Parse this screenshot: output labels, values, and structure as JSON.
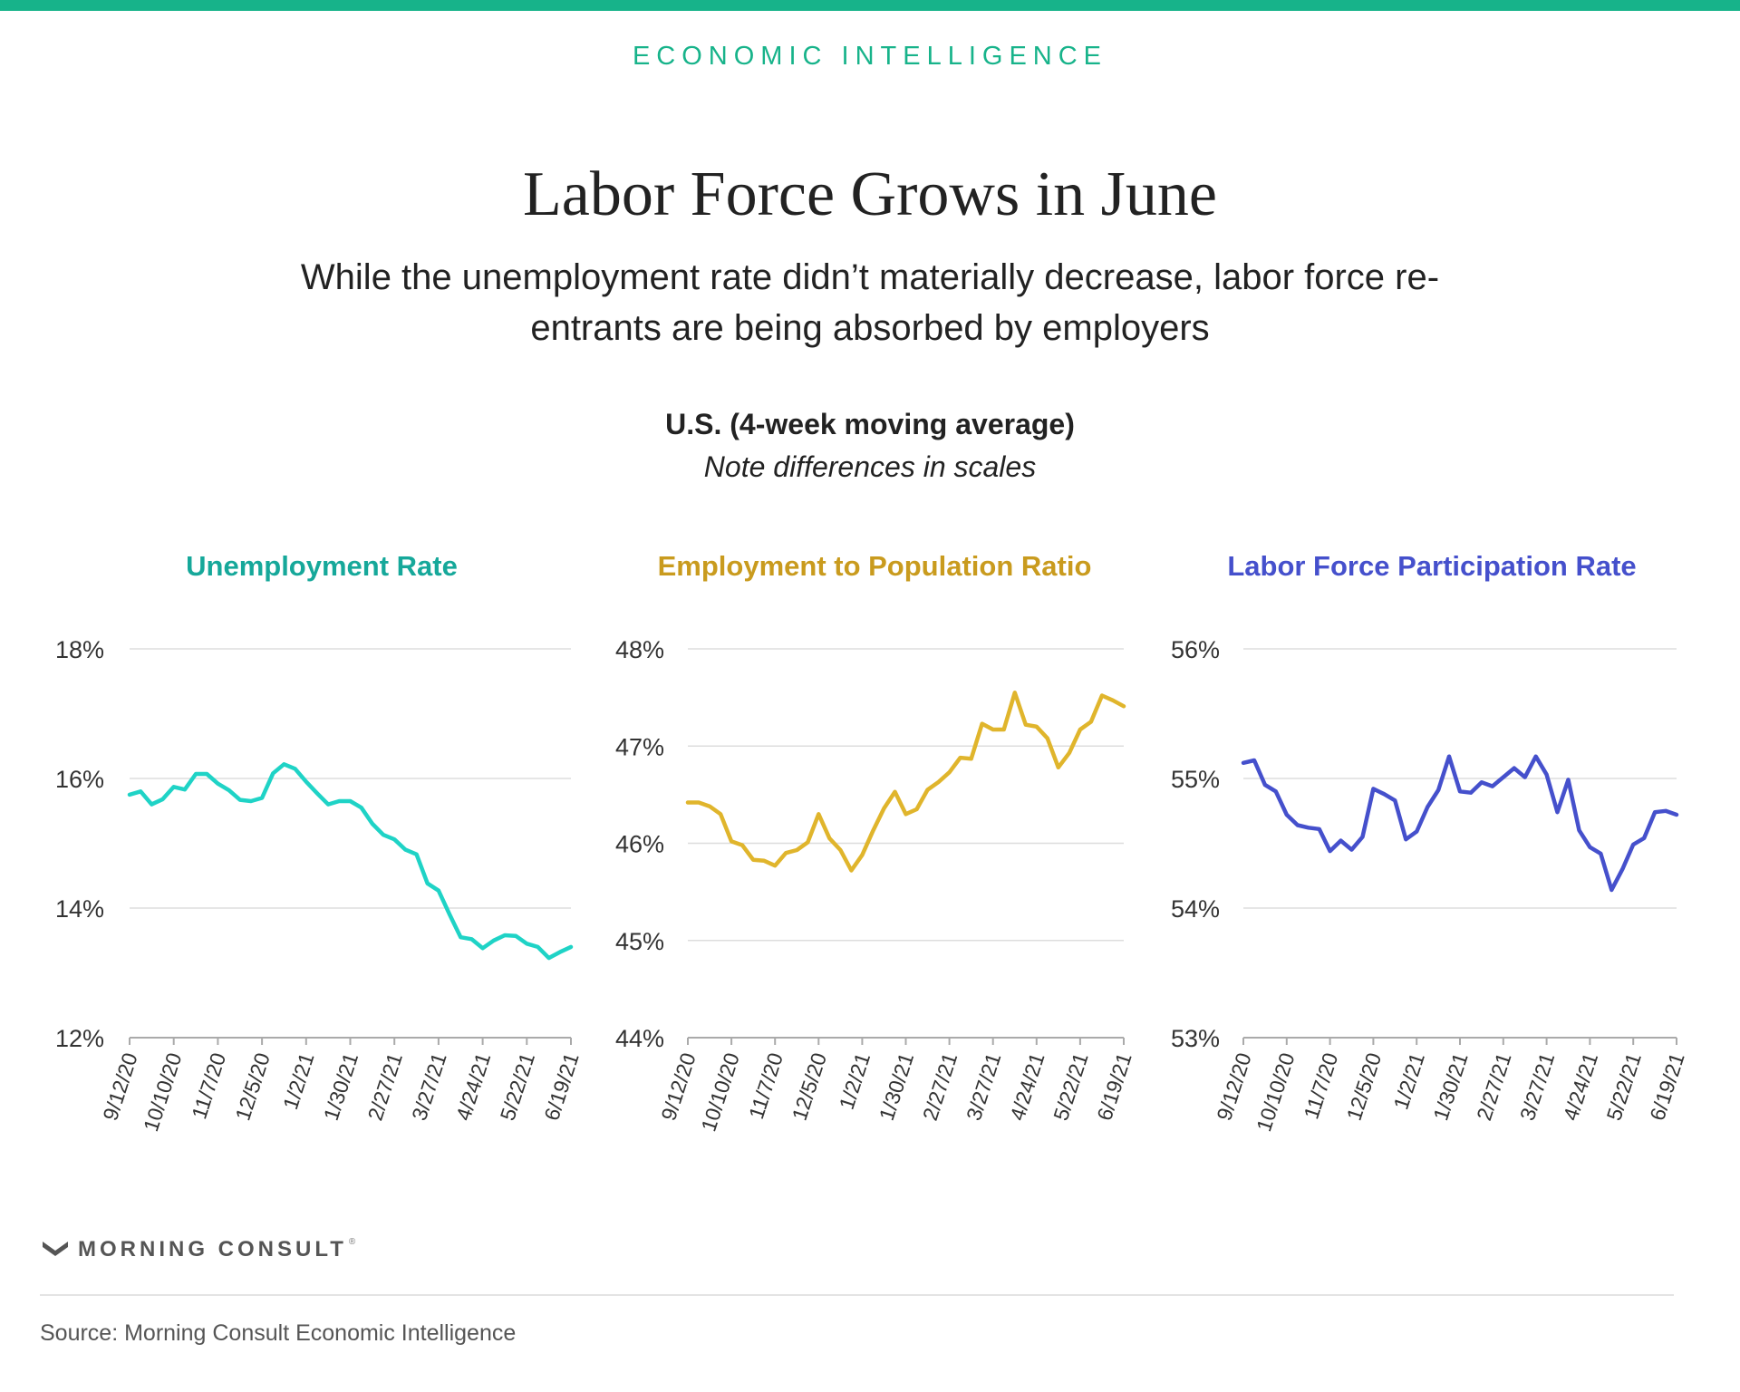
{
  "header": {
    "kicker": "ECONOMIC INTELLIGENCE",
    "title": "Labor Force Grows in June",
    "subtitle": "While the unemployment rate didn’t materially decrease, labor force re-entrants are being absorbed by employers",
    "chart_heading": "U.S. (4-week moving average)",
    "chart_note": "Note differences in scales"
  },
  "colors": {
    "brand_green": "#17b38a",
    "unemployment": "#1fd3c6",
    "unemployment_title": "#16a89a",
    "employment": "#e0b52c",
    "employment_title": "#c99b1e",
    "participation": "#4550cc"
  },
  "footer": {
    "logo_text": "MORNING CONSULT",
    "logo_tm": "®",
    "source": "Source: Morning Consult Economic Intelligence"
  },
  "chart_data": [
    {
      "type": "line",
      "title": "Unemployment Rate",
      "ylim": [
        12,
        18
      ],
      "yticks": [
        12,
        14,
        16,
        18
      ],
      "ytick_labels": [
        "12%",
        "14%",
        "16%",
        "18%"
      ],
      "xtick_labels": [
        "9/12/20",
        "10/10/20",
        "11/7/20",
        "12/5/20",
        "1/2/21",
        "1/30/21",
        "2/27/21",
        "3/27/21",
        "4/24/21",
        "5/22/21",
        "6/19/21"
      ],
      "grid": true,
      "x": [
        "9/12/20",
        "9/19/20",
        "9/26/20",
        "10/3/20",
        "10/10/20",
        "10/17/20",
        "10/24/20",
        "10/31/20",
        "11/7/20",
        "11/14/20",
        "11/21/20",
        "11/28/20",
        "12/5/20",
        "12/12/20",
        "12/19/20",
        "12/26/20",
        "1/2/21",
        "1/9/21",
        "1/16/21",
        "1/23/21",
        "1/30/21",
        "2/6/21",
        "2/13/21",
        "2/20/21",
        "2/27/21",
        "3/6/21",
        "3/13/21",
        "3/20/21",
        "3/27/21",
        "4/3/21",
        "4/10/21",
        "4/17/21",
        "4/24/21",
        "5/1/21",
        "5/8/21",
        "5/15/21",
        "5/22/21",
        "5/29/21",
        "6/5/21",
        "6/12/21",
        "6/19/21"
      ],
      "values": [
        15.75,
        15.8,
        15.6,
        15.68,
        15.87,
        15.83,
        16.07,
        16.07,
        15.92,
        15.82,
        15.67,
        15.65,
        15.7,
        16.08,
        16.22,
        16.15,
        15.95,
        15.77,
        15.6,
        15.65,
        15.65,
        15.55,
        15.3,
        15.13,
        15.06,
        14.9,
        14.83,
        14.38,
        14.27,
        13.9,
        13.55,
        13.52,
        13.38,
        13.5,
        13.58,
        13.57,
        13.45,
        13.4,
        13.23,
        13.32,
        13.4
      ],
      "series": [
        {
          "name": "Unemployment Rate",
          "values": "values"
        }
      ]
    },
    {
      "type": "line",
      "title": "Employment to Population Ratio",
      "ylim": [
        44,
        48
      ],
      "yticks": [
        44,
        45,
        46,
        47,
        48
      ],
      "ytick_labels": [
        "44%",
        "45%",
        "46%",
        "47%",
        "48%"
      ],
      "xtick_labels": [
        "9/12/20",
        "10/10/20",
        "11/7/20",
        "12/5/20",
        "1/2/21",
        "1/30/21",
        "2/27/21",
        "3/27/21",
        "4/24/21",
        "5/22/21",
        "6/19/21"
      ],
      "grid": true,
      "x": [
        "9/12/20",
        "9/19/20",
        "9/26/20",
        "10/3/20",
        "10/10/20",
        "10/17/20",
        "10/24/20",
        "10/31/20",
        "11/7/20",
        "11/14/20",
        "11/21/20",
        "11/28/20",
        "12/5/20",
        "12/12/20",
        "12/19/20",
        "12/26/20",
        "1/2/21",
        "1/9/21",
        "1/16/21",
        "1/23/21",
        "1/30/21",
        "2/6/21",
        "2/13/21",
        "2/20/21",
        "2/27/21",
        "3/6/21",
        "3/13/21",
        "3/20/21",
        "3/27/21",
        "4/3/21",
        "4/10/21",
        "4/17/21",
        "4/24/21",
        "5/1/21",
        "5/8/21",
        "5/15/21",
        "5/22/21",
        "5/29/21",
        "6/5/21",
        "6/12/21",
        "6/19/21"
      ],
      "values": [
        46.42,
        46.42,
        46.38,
        46.3,
        46.02,
        45.98,
        45.83,
        45.82,
        45.77,
        45.9,
        45.93,
        46.01,
        46.3,
        46.05,
        45.93,
        45.72,
        45.88,
        46.13,
        46.36,
        46.53,
        46.3,
        46.35,
        46.55,
        46.63,
        46.73,
        46.88,
        46.87,
        47.23,
        47.17,
        47.17,
        47.55,
        47.22,
        47.2,
        47.08,
        46.78,
        46.93,
        47.17,
        47.25,
        47.52,
        47.47,
        47.41
      ],
      "series": [
        {
          "name": "Employment to Population Ratio",
          "values": "values"
        }
      ]
    },
    {
      "type": "line",
      "title": "Labor Force Participation Rate",
      "ylim": [
        53,
        56
      ],
      "yticks": [
        53,
        54,
        55,
        56
      ],
      "ytick_labels": [
        "53%",
        "54%",
        "55%",
        "56%"
      ],
      "xtick_labels": [
        "9/12/20",
        "10/10/20",
        "11/7/20",
        "12/5/20",
        "1/2/21",
        "1/30/21",
        "2/27/21",
        "3/27/21",
        "4/24/21",
        "5/22/21",
        "6/19/21"
      ],
      "grid": true,
      "x": [
        "9/12/20",
        "9/19/20",
        "9/26/20",
        "10/3/20",
        "10/10/20",
        "10/17/20",
        "10/24/20",
        "10/31/20",
        "11/7/20",
        "11/14/20",
        "11/21/20",
        "11/28/20",
        "12/5/20",
        "12/12/20",
        "12/19/20",
        "12/26/20",
        "1/2/21",
        "1/9/21",
        "1/16/21",
        "1/23/21",
        "1/30/21",
        "2/6/21",
        "2/13/21",
        "2/20/21",
        "2/27/21",
        "3/6/21",
        "3/13/21",
        "3/20/21",
        "3/27/21",
        "4/3/21",
        "4/10/21",
        "4/17/21",
        "4/24/21",
        "5/1/21",
        "5/8/21",
        "5/15/21",
        "5/22/21",
        "5/29/21",
        "6/5/21",
        "6/12/21",
        "6/19/21"
      ],
      "values": [
        55.12,
        55.14,
        54.95,
        54.9,
        54.72,
        54.64,
        54.62,
        54.61,
        54.44,
        54.52,
        54.45,
        54.55,
        54.92,
        54.88,
        54.83,
        54.53,
        54.59,
        54.78,
        54.91,
        55.17,
        54.9,
        54.89,
        54.97,
        54.94,
        55.01,
        55.08,
        55.01,
        55.17,
        55.03,
        54.74,
        54.99,
        54.6,
        54.47,
        54.42,
        54.14,
        54.3,
        54.49,
        54.54,
        54.74,
        54.75,
        54.72
      ],
      "series": [
        {
          "name": "Labor Force Participation Rate",
          "values": "values"
        }
      ]
    }
  ]
}
